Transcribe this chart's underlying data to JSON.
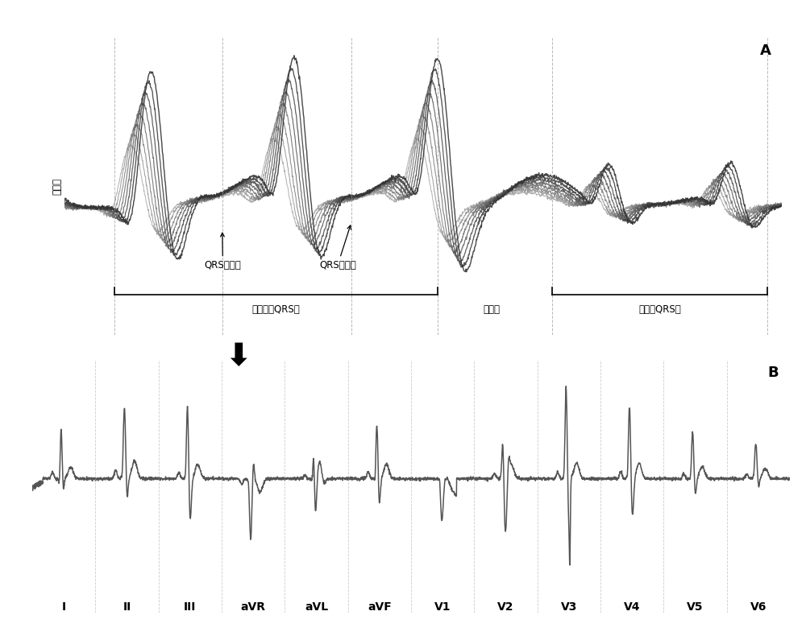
{
  "bg_color": "#ffffff",
  "panel_A_label": "A",
  "panel_B_label": "B",
  "label_qrs_start": "QRS波开始",
  "label_qrs_end": "QRS波结束",
  "label_collected": "采集到的QRS波",
  "label_time": "时间轴",
  "label_ectopic": "异位的QRS波",
  "ylabel_A": "电压値",
  "lead_labels": [
    "I",
    "II",
    "III",
    "aVR",
    "aVL",
    "aVF",
    "V1",
    "V2",
    "V3",
    "V4",
    "V5",
    "V6"
  ]
}
